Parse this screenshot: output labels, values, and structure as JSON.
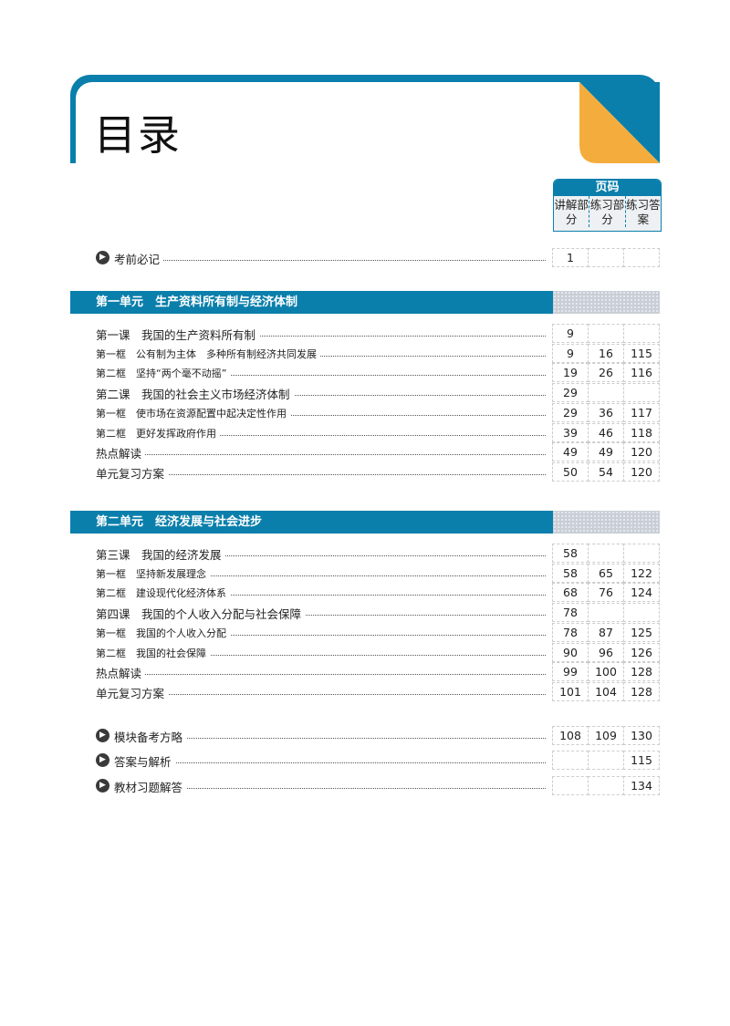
{
  "title": "目录",
  "page_code": {
    "header": "页码",
    "columns": [
      "讲解部分",
      "练习部分",
      "练习答案"
    ]
  },
  "intro": {
    "label": "考前必记",
    "pages": [
      "1",
      "",
      ""
    ]
  },
  "units": [
    {
      "title": "第一单元　生产资料所有制与经济体制",
      "rows": [
        {
          "label": "第一课　我国的生产资料所有制",
          "small": false,
          "pages": [
            "9",
            "",
            ""
          ]
        },
        {
          "label": "第一框　公有制为主体　多种所有制经济共同发展",
          "small": true,
          "pages": [
            "9",
            "16",
            "115"
          ]
        },
        {
          "label": "第二框　坚持“两个毫不动摇”",
          "small": true,
          "pages": [
            "19",
            "26",
            "116"
          ]
        },
        {
          "label": "第二课　我国的社会主义市场经济体制",
          "small": false,
          "pages": [
            "29",
            "",
            ""
          ]
        },
        {
          "label": "第一框　使市场在资源配置中起决定性作用",
          "small": true,
          "pages": [
            "29",
            "36",
            "117"
          ]
        },
        {
          "label": "第二框　更好发挥政府作用",
          "small": true,
          "pages": [
            "39",
            "46",
            "118"
          ]
        },
        {
          "label": "热点解读",
          "small": false,
          "pages": [
            "49",
            "49",
            "120"
          ]
        },
        {
          "label": "单元复习方案",
          "small": false,
          "pages": [
            "50",
            "54",
            "120"
          ]
        }
      ]
    },
    {
      "title": "第二单元　经济发展与社会进步",
      "rows": [
        {
          "label": "第三课　我国的经济发展",
          "small": false,
          "pages": [
            "58",
            "",
            ""
          ]
        },
        {
          "label": "第一框　坚持新发展理念",
          "small": true,
          "pages": [
            "58",
            "65",
            "122"
          ]
        },
        {
          "label": "第二框　建设现代化经济体系",
          "small": true,
          "pages": [
            "68",
            "76",
            "124"
          ]
        },
        {
          "label": "第四课　我国的个人收入分配与社会保障",
          "small": false,
          "pages": [
            "78",
            "",
            ""
          ]
        },
        {
          "label": "第一框　我国的个人收入分配",
          "small": true,
          "pages": [
            "78",
            "87",
            "125"
          ]
        },
        {
          "label": "第二框　我国的社会保障",
          "small": true,
          "pages": [
            "90",
            "96",
            "126"
          ]
        },
        {
          "label": "热点解读",
          "small": false,
          "pages": [
            "99",
            "100",
            "128"
          ]
        },
        {
          "label": "单元复习方案",
          "small": false,
          "pages": [
            "101",
            "104",
            "128"
          ]
        }
      ]
    }
  ],
  "extras": [
    {
      "label": "模块备考方略",
      "pages": [
        "108",
        "109",
        "130"
      ]
    },
    {
      "label": "答案与解析",
      "pages": [
        "",
        "",
        "115"
      ]
    },
    {
      "label": "教材习题解答",
      "pages": [
        "",
        "",
        "134"
      ]
    }
  ],
  "colors": {
    "blue": "#0a7fab",
    "orange": "#f4ad3d"
  },
  "icons": {
    "bullet": "arrow-circle-icon"
  }
}
